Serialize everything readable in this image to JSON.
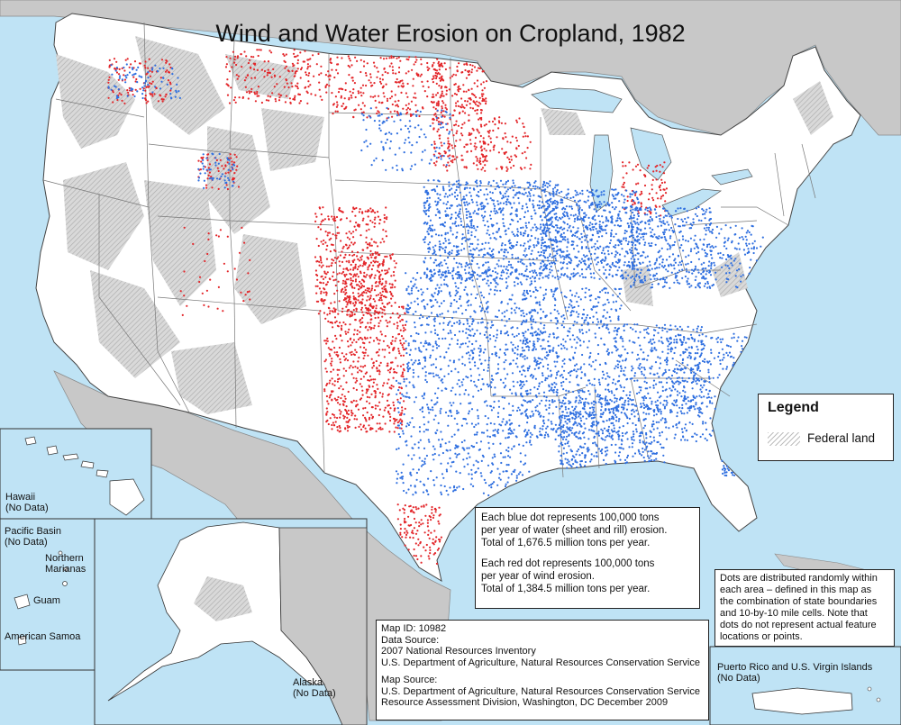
{
  "title": "Wind and Water Erosion on Cropland, 1982",
  "legend": {
    "title": "Legend",
    "federal_label": "Federal land"
  },
  "insets": {
    "hawaii": "Hawaii",
    "hawaii_nd": "(No Data)",
    "pacific": "Pacific Basin",
    "pacific_nd": "(No Data)",
    "northern": "Northern",
    "marianas": "Marianas",
    "guam": "Guam",
    "samoa": "American Samoa",
    "alaska": "Alaska",
    "alaska_nd": "(No Data)",
    "pr": "Puerto Rico and U.S. Virgin Islands",
    "pr_nd": "(No Data)"
  },
  "dots": {
    "blue_line1": "Each blue dot represents 100,000 tons",
    "blue_line2": "per year of water (sheet and rill) erosion.",
    "blue_line3": "Total of 1,676.5 million tons per year.",
    "red_line1": "Each red dot represents 100,000 tons",
    "red_line2": "per year of wind erosion.",
    "red_line3": "Total of 1,384.5 million tons per year."
  },
  "note": [
    "Dots are distributed randomly within",
    "each area – defined in this map as",
    "the combination of state boundaries",
    "and 10-by-10 mile cells.  Note that",
    "dots do not represent actual feature",
    "locations or points."
  ],
  "source": {
    "map_id": "Map ID:  10982",
    "data_source_label": "Data Source:",
    "data_source1": "2007 National Resources Inventory",
    "data_source2": "U.S. Department of Agriculture, Natural Resources Conservation Service",
    "map_source_label": "Map Source:",
    "map_source1": "U.S. Department of Agriculture, Natural Resources Conservation Service",
    "map_source2": "Resource Assessment Division, Washington, DC    December 2009"
  },
  "colors": {
    "water": "#bfe3f5",
    "land": "#ffffff",
    "neighbor": "#c8c8c8",
    "federal": "#bdbdbd",
    "blue_dot": "#2f6fe0",
    "red_dot": "#e3262a"
  }
}
